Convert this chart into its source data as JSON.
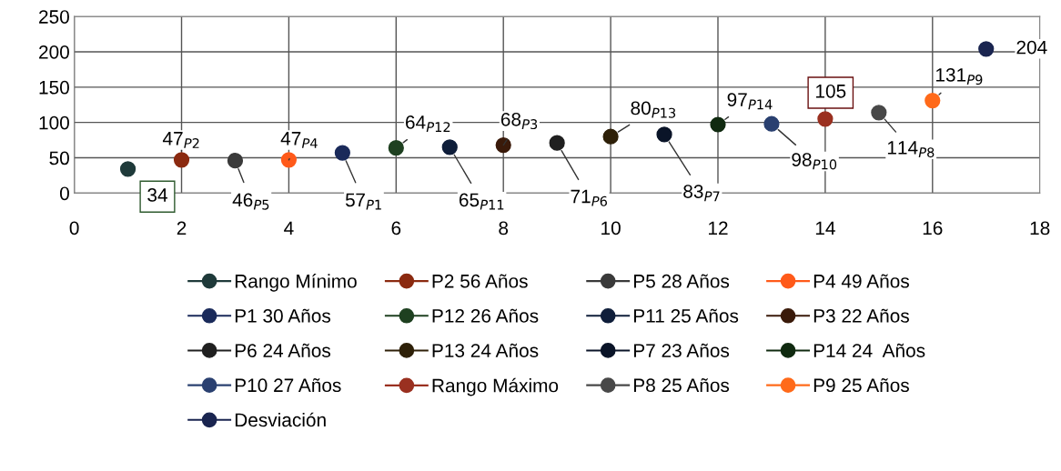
{
  "chart_data": {
    "type": "scatter",
    "xlim": [
      0,
      18
    ],
    "xticks": [
      0,
      2,
      4,
      6,
      8,
      10,
      12,
      14,
      16,
      18
    ],
    "ylim": [
      0,
      250
    ],
    "yticks": [
      0,
      50,
      100,
      150,
      200,
      250
    ],
    "grid": true,
    "legend": "bottom",
    "marker": "circle",
    "series": [
      {
        "name": "Rango Mínimo",
        "color": "#1f3a3a",
        "x": [
          1
        ],
        "values": [
          34
        ]
      },
      {
        "name": "P2 56 Años",
        "color": "#8b2a10",
        "x": [
          2
        ],
        "values": [
          47
        ]
      },
      {
        "name": "P5 28 Años",
        "color": "#3a3a3a",
        "x": [
          3
        ],
        "values": [
          46
        ]
      },
      {
        "name": "P4 49 Años",
        "color": "#ff5a1a",
        "x": [
          4
        ],
        "values": [
          47
        ]
      },
      {
        "name": "P1 30 Años",
        "color": "#1a2a5a",
        "x": [
          5
        ],
        "values": [
          57
        ]
      },
      {
        "name": "P12 26 Años",
        "color": "#1e4020",
        "x": [
          6
        ],
        "values": [
          64
        ]
      },
      {
        "name": "P11 25 Años",
        "color": "#0f1e3a",
        "x": [
          7
        ],
        "values": [
          65
        ]
      },
      {
        "name": "P3 22 Años",
        "color": "#3a1a0a",
        "x": [
          8
        ],
        "values": [
          68
        ]
      },
      {
        "name": "P6 24 Años",
        "color": "#202020",
        "x": [
          9
        ],
        "values": [
          71
        ]
      },
      {
        "name": "P13 24 Años",
        "color": "#2e2008",
        "x": [
          10
        ],
        "values": [
          80
        ]
      },
      {
        "name": "P7 23 Años",
        "color": "#0a1428",
        "x": [
          11
        ],
        "values": [
          83
        ]
      },
      {
        "name": "P14 24  Años",
        "color": "#102a10",
        "x": [
          12
        ],
        "values": [
          97
        ]
      },
      {
        "name": "P10 27 Años",
        "color": "#2a4070",
        "x": [
          13
        ],
        "values": [
          98
        ]
      },
      {
        "name": "Rango Máximo",
        "color": "#9a3020",
        "x": [
          14
        ],
        "values": [
          105
        ]
      },
      {
        "name": "P8 25 Años",
        "color": "#484848",
        "x": [
          15
        ],
        "values": [
          114
        ]
      },
      {
        "name": "P9 25 Años",
        "color": "#ff6a1a",
        "x": [
          16
        ],
        "values": [
          131
        ]
      },
      {
        "name": "Desviación",
        "color": "#1a2550",
        "x": [
          17
        ],
        "values": [
          204
        ]
      }
    ],
    "annotations": [
      {
        "text": "34",
        "x": 1,
        "y": 34
      },
      {
        "text": "47$_{P2}$",
        "x": 2,
        "y": 47
      },
      {
        "text": "46$_{P5}$",
        "x": 3,
        "y": 46
      },
      {
        "text": "47$_{P4}$",
        "x": 4,
        "y": 47
      },
      {
        "text": "57$_{P1}$",
        "x": 5,
        "y": 57
      },
      {
        "text": "64$_{P12}$",
        "x": 6,
        "y": 64
      },
      {
        "text": "65$_{P11}$",
        "x": 7,
        "y": 65
      },
      {
        "text": "68$_{P3}$",
        "x": 8,
        "y": 68
      },
      {
        "text": "71$_{P6}$",
        "x": 9,
        "y": 71
      },
      {
        "text": "80$_{P13}$",
        "x": 10,
        "y": 80
      },
      {
        "text": "83$_{P7}$",
        "x": 11,
        "y": 83
      },
      {
        "text": "97$_{P14}$",
        "x": 12,
        "y": 97
      },
      {
        "text": "98$_{P10}$",
        "x": 13,
        "y": 98
      },
      {
        "text": "105",
        "x": 14,
        "y": 105
      },
      {
        "text": "114$_{P8}$",
        "x": 15,
        "y": 114
      },
      {
        "text": "131$_{P9}$",
        "x": 16,
        "y": 131
      },
      {
        "text": "204",
        "x": 17,
        "y": 204
      }
    ]
  }
}
